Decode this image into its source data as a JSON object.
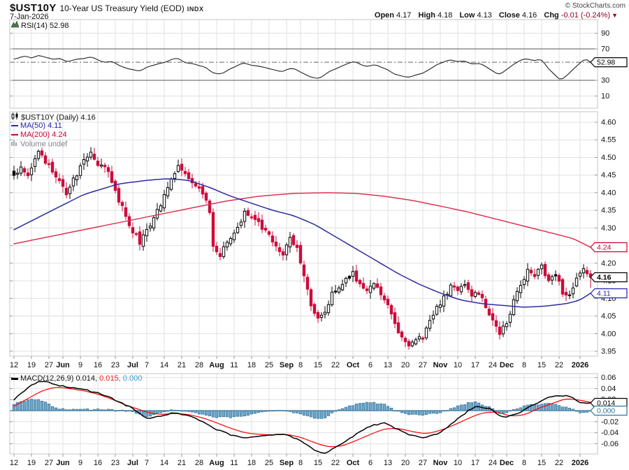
{
  "header": {
    "symbol": "$UST10Y",
    "title": "10-Year US Treasury Yield (EOD)",
    "exchange": "INDX",
    "date": "7-Jan-2026",
    "copyright": "© StockCharts.com",
    "ohlc": {
      "open_label": "Open",
      "open": "4.17",
      "high_label": "High",
      "high": "4.18",
      "low_label": "Low",
      "low": "4.13",
      "close_label": "Close",
      "close": "4.16",
      "chg_label": "Chg",
      "chg": "-0.01 (-0.24%)",
      "direction": "▼"
    }
  },
  "panels": {
    "rsi": {
      "legend": "RSI(14) 52.98"
    },
    "price": {
      "legend_symbol": "$UST10Y (Daily) 4.16",
      "legend_ma50": "MA(50) 4.11",
      "legend_ma200": "MA(200) 4.24",
      "legend_volume": "Volume undef"
    },
    "macd": {
      "legend_name_value": "MACD(12,26,9) 0.014,",
      "legend_signal": "0.015,",
      "legend_hist": "0.000"
    }
  },
  "x_axis": {
    "ticks": [
      {
        "label": "12",
        "i": 0,
        "bold": false
      },
      {
        "label": "19",
        "i": 5,
        "bold": false
      },
      {
        "label": "27",
        "i": 10,
        "bold": false
      },
      {
        "label": "Jun",
        "i": 14,
        "bold": true
      },
      {
        "label": "9",
        "i": 19,
        "bold": false
      },
      {
        "label": "16",
        "i": 24,
        "bold": false
      },
      {
        "label": "23",
        "i": 29,
        "bold": false
      },
      {
        "label": "Jul",
        "i": 34,
        "bold": true
      },
      {
        "label": "7",
        "i": 38,
        "bold": false
      },
      {
        "label": "14",
        "i": 43,
        "bold": false
      },
      {
        "label": "21",
        "i": 48,
        "bold": false
      },
      {
        "label": "28",
        "i": 53,
        "bold": false
      },
      {
        "label": "Aug",
        "i": 58,
        "bold": true
      },
      {
        "label": "11",
        "i": 63,
        "bold": false
      },
      {
        "label": "18",
        "i": 68,
        "bold": false
      },
      {
        "label": "25",
        "i": 73,
        "bold": false
      },
      {
        "label": "Sep",
        "i": 78,
        "bold": true
      },
      {
        "label": "8",
        "i": 82,
        "bold": false
      },
      {
        "label": "15",
        "i": 87,
        "bold": false
      },
      {
        "label": "22",
        "i": 92,
        "bold": false
      },
      {
        "label": "Oct",
        "i": 97,
        "bold": true
      },
      {
        "label": "6",
        "i": 102,
        "bold": false
      },
      {
        "label": "13",
        "i": 107,
        "bold": false
      },
      {
        "label": "20",
        "i": 112,
        "bold": false
      },
      {
        "label": "27",
        "i": 117,
        "bold": false
      },
      {
        "label": "Nov",
        "i": 122,
        "bold": true
      },
      {
        "label": "10",
        "i": 127,
        "bold": false
      },
      {
        "label": "17",
        "i": 132,
        "bold": false
      },
      {
        "label": "24",
        "i": 137,
        "bold": false
      },
      {
        "label": "Dec",
        "i": 141,
        "bold": true
      },
      {
        "label": "8",
        "i": 146,
        "bold": false
      },
      {
        "label": "15",
        "i": 151,
        "bold": false
      },
      {
        "label": "22",
        "i": 156,
        "bold": false
      },
      {
        "label": "2026",
        "i": 162,
        "bold": true
      }
    ]
  },
  "chart_data": {
    "type": "candlestick-with-indicators",
    "symbol": "$UST10Y",
    "timeframe": "Daily",
    "num_days": 166,
    "date_range": [
      "12-May-2025",
      "7-Jan-2026"
    ],
    "last_values": {
      "close": 4.16,
      "prev_close": 4.17,
      "ma50": 4.11,
      "ma200": 4.24,
      "rsi": 52.98,
      "macd": 0.014,
      "signal": 0.015,
      "hist": 0.0
    },
    "last_candle": {
      "open": 4.17,
      "high": 4.18,
      "low": 4.13,
      "close": 4.16
    },
    "price_axis": {
      "min": 3.93,
      "max": 4.62,
      "ticks": [
        4.6,
        4.55,
        4.5,
        4.45,
        4.4,
        4.35,
        4.3,
        4.25,
        4.2,
        4.15,
        4.1,
        4.05,
        4.0,
        3.95
      ]
    },
    "rsi_axis": {
      "ticks": [
        90,
        70,
        30,
        10
      ],
      "overbought": 70,
      "oversold": 30,
      "current": 52.98
    },
    "macd_axis": {
      "ticks": [
        0.06,
        0.04,
        0.02,
        -0.02,
        -0.04,
        -0.06
      ],
      "zero": 0
    },
    "close_keypoints": [
      [
        0,
        4.45
      ],
      [
        2,
        4.47
      ],
      [
        4,
        4.44
      ],
      [
        7,
        4.52
      ],
      [
        9,
        4.49
      ],
      [
        12,
        4.45
      ],
      [
        15,
        4.4
      ],
      [
        17,
        4.44
      ],
      [
        19,
        4.47
      ],
      [
        22,
        4.52
      ],
      [
        24,
        4.48
      ],
      [
        27,
        4.46
      ],
      [
        29,
        4.4
      ],
      [
        31,
        4.36
      ],
      [
        33,
        4.31
      ],
      [
        36,
        4.26
      ],
      [
        38,
        4.29
      ],
      [
        40,
        4.33
      ],
      [
        43,
        4.39
      ],
      [
        45,
        4.44
      ],
      [
        47,
        4.48
      ],
      [
        49,
        4.45
      ],
      [
        51,
        4.43
      ],
      [
        53,
        4.41
      ],
      [
        55,
        4.38
      ],
      [
        56,
        4.35
      ],
      [
        57,
        4.25
      ],
      [
        59,
        4.22
      ],
      [
        61,
        4.26
      ],
      [
        63,
        4.29
      ],
      [
        66,
        4.34
      ],
      [
        68,
        4.33
      ],
      [
        71,
        4.3
      ],
      [
        73,
        4.28
      ],
      [
        75,
        4.25
      ],
      [
        77,
        4.23
      ],
      [
        79,
        4.27
      ],
      [
        81,
        4.24
      ],
      [
        83,
        4.16
      ],
      [
        85,
        4.08
      ],
      [
        87,
        4.04
      ],
      [
        89,
        4.06
      ],
      [
        91,
        4.11
      ],
      [
        93,
        4.13
      ],
      [
        95,
        4.15
      ],
      [
        97,
        4.17
      ],
      [
        99,
        4.14
      ],
      [
        101,
        4.12
      ],
      [
        103,
        4.15
      ],
      [
        105,
        4.11
      ],
      [
        107,
        4.08
      ],
      [
        109,
        4.03
      ],
      [
        111,
        3.99
      ],
      [
        113,
        3.96
      ],
      [
        115,
        3.98
      ],
      [
        117,
        3.99
      ],
      [
        119,
        4.03
      ],
      [
        121,
        4.07
      ],
      [
        123,
        4.1
      ],
      [
        125,
        4.13
      ],
      [
        127,
        4.12
      ],
      [
        129,
        4.14
      ],
      [
        131,
        4.1
      ],
      [
        133,
        4.12
      ],
      [
        135,
        4.08
      ],
      [
        137,
        4.04
      ],
      [
        139,
        4.0
      ],
      [
        141,
        4.03
      ],
      [
        143,
        4.09
      ],
      [
        145,
        4.14
      ],
      [
        147,
        4.18
      ],
      [
        149,
        4.16
      ],
      [
        151,
        4.19
      ],
      [
        153,
        4.15
      ],
      [
        155,
        4.17
      ],
      [
        157,
        4.12
      ],
      [
        159,
        4.11
      ],
      [
        161,
        4.15
      ],
      [
        163,
        4.19
      ],
      [
        164,
        4.17
      ],
      [
        165,
        4.16
      ]
    ],
    "ma50_keypoints": [
      [
        0,
        4.295
      ],
      [
        10,
        4.345
      ],
      [
        20,
        4.395
      ],
      [
        30,
        4.425
      ],
      [
        38,
        4.435
      ],
      [
        44,
        4.44
      ],
      [
        50,
        4.435
      ],
      [
        56,
        4.415
      ],
      [
        62,
        4.39
      ],
      [
        68,
        4.37
      ],
      [
        74,
        4.35
      ],
      [
        80,
        4.335
      ],
      [
        86,
        4.31
      ],
      [
        92,
        4.275
      ],
      [
        98,
        4.24
      ],
      [
        104,
        4.205
      ],
      [
        110,
        4.17
      ],
      [
        116,
        4.14
      ],
      [
        122,
        4.115
      ],
      [
        128,
        4.095
      ],
      [
        134,
        4.085
      ],
      [
        140,
        4.08
      ],
      [
        146,
        4.075
      ],
      [
        152,
        4.078
      ],
      [
        158,
        4.085
      ],
      [
        162,
        4.095
      ],
      [
        165,
        4.115
      ]
    ],
    "ma200_keypoints": [
      [
        0,
        4.255
      ],
      [
        10,
        4.275
      ],
      [
        20,
        4.295
      ],
      [
        30,
        4.315
      ],
      [
        40,
        4.335
      ],
      [
        50,
        4.355
      ],
      [
        60,
        4.375
      ],
      [
        70,
        4.39
      ],
      [
        80,
        4.398
      ],
      [
        90,
        4.4
      ],
      [
        98,
        4.398
      ],
      [
        106,
        4.39
      ],
      [
        114,
        4.378
      ],
      [
        122,
        4.362
      ],
      [
        130,
        4.345
      ],
      [
        138,
        4.325
      ],
      [
        146,
        4.305
      ],
      [
        154,
        4.285
      ],
      [
        160,
        4.27
      ],
      [
        165,
        4.245
      ]
    ],
    "rsi_keypoints": [
      [
        0,
        57
      ],
      [
        3,
        61
      ],
      [
        5,
        58
      ],
      [
        7,
        63
      ],
      [
        9,
        59
      ],
      [
        11,
        56
      ],
      [
        13,
        59
      ],
      [
        15,
        53
      ],
      [
        17,
        55
      ],
      [
        19,
        57
      ],
      [
        22,
        60
      ],
      [
        24,
        55
      ],
      [
        26,
        52
      ],
      [
        28,
        54
      ],
      [
        30,
        49
      ],
      [
        33,
        45
      ],
      [
        36,
        41
      ],
      [
        38,
        46
      ],
      [
        40,
        49
      ],
      [
        43,
        53
      ],
      [
        45,
        56
      ],
      [
        47,
        58
      ],
      [
        49,
        53
      ],
      [
        51,
        51
      ],
      [
        53,
        49
      ],
      [
        55,
        46
      ],
      [
        57,
        39
      ],
      [
        59,
        37
      ],
      [
        61,
        43
      ],
      [
        63,
        47
      ],
      [
        66,
        52
      ],
      [
        68,
        50
      ],
      [
        71,
        47
      ],
      [
        73,
        45
      ],
      [
        75,
        43
      ],
      [
        77,
        41
      ],
      [
        79,
        46
      ],
      [
        81,
        43
      ],
      [
        83,
        38
      ],
      [
        85,
        34
      ],
      [
        87,
        32
      ],
      [
        89,
        37
      ],
      [
        91,
        43
      ],
      [
        93,
        47
      ],
      [
        95,
        51
      ],
      [
        97,
        55
      ],
      [
        99,
        51
      ],
      [
        101,
        48
      ],
      [
        103,
        51
      ],
      [
        105,
        46
      ],
      [
        107,
        44
      ],
      [
        109,
        38
      ],
      [
        111,
        35
      ],
      [
        113,
        33
      ],
      [
        115,
        37
      ],
      [
        117,
        39
      ],
      [
        119,
        45
      ],
      [
        121,
        50
      ],
      [
        123,
        53
      ],
      [
        125,
        57
      ],
      [
        127,
        54
      ],
      [
        129,
        56
      ],
      [
        131,
        50
      ],
      [
        133,
        53
      ],
      [
        135,
        47
      ],
      [
        137,
        42
      ],
      [
        139,
        37
      ],
      [
        141,
        43
      ],
      [
        143,
        50
      ],
      [
        145,
        55
      ],
      [
        147,
        58
      ],
      [
        149,
        54
      ],
      [
        151,
        57
      ],
      [
        153,
        45
      ],
      [
        155,
        36
      ],
      [
        156,
        29
      ],
      [
        158,
        36
      ],
      [
        160,
        44
      ],
      [
        162,
        53
      ],
      [
        164,
        58
      ],
      [
        165,
        53
      ]
    ],
    "macd_keypoints": [
      [
        0,
        0.02
      ],
      [
        4,
        0.042
      ],
      [
        8,
        0.055
      ],
      [
        12,
        0.047
      ],
      [
        16,
        0.042
      ],
      [
        20,
        0.038
      ],
      [
        24,
        0.032
      ],
      [
        28,
        0.022
      ],
      [
        32,
        0.01
      ],
      [
        34,
        0.004
      ],
      [
        38,
        -0.014
      ],
      [
        42,
        -0.009
      ],
      [
        46,
        -0.004
      ],
      [
        50,
        -0.01
      ],
      [
        54,
        -0.02
      ],
      [
        58,
        -0.034
      ],
      [
        62,
        -0.044
      ],
      [
        66,
        -0.049
      ],
      [
        70,
        -0.046
      ],
      [
        74,
        -0.043
      ],
      [
        78,
        -0.043
      ],
      [
        82,
        -0.055
      ],
      [
        86,
        -0.072
      ],
      [
        88,
        -0.078
      ],
      [
        90,
        -0.074
      ],
      [
        94,
        -0.06
      ],
      [
        98,
        -0.042
      ],
      [
        102,
        -0.028
      ],
      [
        106,
        -0.022
      ],
      [
        110,
        -0.034
      ],
      [
        114,
        -0.046
      ],
      [
        118,
        -0.049
      ],
      [
        122,
        -0.04
      ],
      [
        126,
        -0.02
      ],
      [
        130,
        0.0
      ],
      [
        132,
        0.008
      ],
      [
        136,
        0.004
      ],
      [
        140,
        -0.012
      ],
      [
        144,
        -0.006
      ],
      [
        148,
        0.008
      ],
      [
        152,
        0.022
      ],
      [
        156,
        0.028
      ],
      [
        159,
        0.026
      ],
      [
        162,
        0.015
      ],
      [
        165,
        0.014
      ]
    ],
    "signal_keypoints": [
      [
        0,
        0.008
      ],
      [
        4,
        0.022
      ],
      [
        8,
        0.036
      ],
      [
        12,
        0.043
      ],
      [
        16,
        0.04
      ],
      [
        20,
        0.036
      ],
      [
        24,
        0.03
      ],
      [
        28,
        0.021
      ],
      [
        32,
        0.01
      ],
      [
        34,
        0.006
      ],
      [
        38,
        -0.003
      ],
      [
        42,
        -0.007
      ],
      [
        46,
        -0.005
      ],
      [
        50,
        -0.007
      ],
      [
        54,
        -0.013
      ],
      [
        58,
        -0.022
      ],
      [
        62,
        -0.032
      ],
      [
        66,
        -0.04
      ],
      [
        70,
        -0.043
      ],
      [
        74,
        -0.044
      ],
      [
        78,
        -0.043
      ],
      [
        82,
        -0.048
      ],
      [
        86,
        -0.058
      ],
      [
        90,
        -0.066
      ],
      [
        94,
        -0.064
      ],
      [
        98,
        -0.054
      ],
      [
        102,
        -0.043
      ],
      [
        106,
        -0.033
      ],
      [
        110,
        -0.032
      ],
      [
        114,
        -0.038
      ],
      [
        118,
        -0.042
      ],
      [
        122,
        -0.036
      ],
      [
        126,
        -0.026
      ],
      [
        130,
        -0.014
      ],
      [
        134,
        -0.004
      ],
      [
        138,
        -0.002
      ],
      [
        142,
        -0.01
      ],
      [
        146,
        -0.008
      ],
      [
        150,
        0.004
      ],
      [
        154,
        0.013
      ],
      [
        158,
        0.022
      ],
      [
        162,
        0.019
      ],
      [
        165,
        0.015
      ]
    ],
    "price_boxes": [
      {
        "text": "4.24",
        "value": 4.245,
        "color": "#cc0033",
        "bold": false
      },
      {
        "text": "4.16",
        "value": 4.16,
        "color": "#000000",
        "bold": true
      },
      {
        "text": "4.11",
        "value": 4.115,
        "color": "#2222aa",
        "bold": false
      }
    ],
    "rsi_box": {
      "text": "52.98",
      "value": 52.98,
      "color": "#000000"
    },
    "macd_boxes": [
      {
        "text": "0.014",
        "value": 0.014,
        "color": "#000000"
      },
      {
        "text": "0.000",
        "value": 0.0,
        "color": "#35749c"
      }
    ]
  },
  "colors": {
    "background": "#ffffff",
    "grid": "#e0e0e0",
    "panel_border": "#c6c6c6",
    "axis_text": "#111111",
    "dark_gridline": "#555555",
    "tick_stub": "#999999",
    "candle_up_fill": "#ffffff",
    "candle_outline": "#000000",
    "candle_down": "#cc0c3c",
    "ma50": "#2c2ca0",
    "ma200": "#dd3355",
    "rsi_line": "#222222",
    "macd_line": "#000000",
    "macd_signal": "#ff0000",
    "hist_fill": "#6ea8cd",
    "hist_stroke": "#2f6e96",
    "zero_line": "#35749c"
  }
}
